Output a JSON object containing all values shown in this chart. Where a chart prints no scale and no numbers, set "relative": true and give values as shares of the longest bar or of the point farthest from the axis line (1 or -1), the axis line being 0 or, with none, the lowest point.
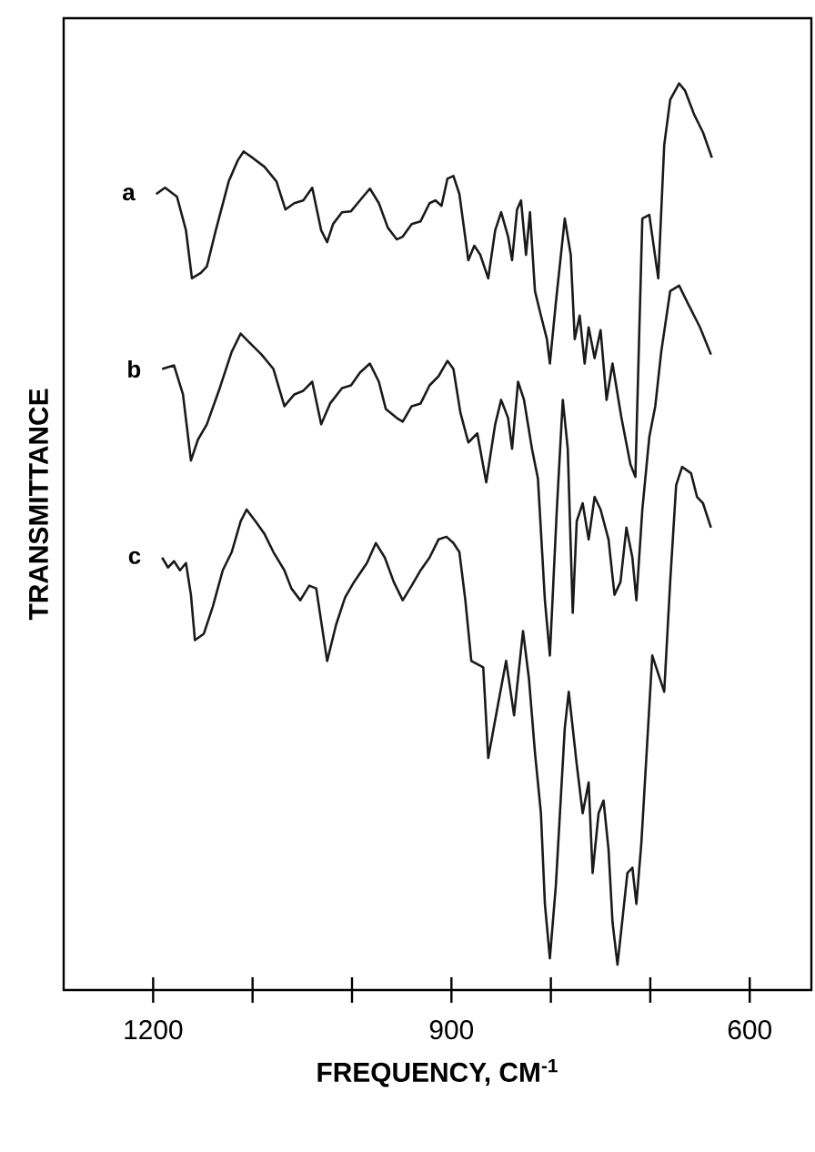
{
  "chart_data": {
    "type": "line",
    "relative": true,
    "xlabel": "FREQUENCY, CM$^{-1}$",
    "ylabel": "TRANSMITTANCE",
    "xlim": [
      1290,
      538
    ],
    "xticks": [
      1200,
      {
        "value": 1100,
        "label": null
      },
      {
        "value": 1000,
        "label": null
      },
      900,
      {
        "value": 800,
        "label": null
      },
      {
        "value": 700,
        "label": null
      },
      600
    ],
    "tick_labels": "x",
    "grid": false,
    "legend": false,
    "marker": "none",
    "line_style": "solid",
    "series": [
      {
        "name": "a",
        "color": "#1a1a1a",
        "x": [
          1197,
          1188,
          1176,
          1167,
          1161,
          1152,
          1146,
          1137,
          1124,
          1115,
          1109,
          1100,
          1088,
          1076,
          1067,
          1058,
          1049,
          1040,
          1031,
          1025,
          1019,
          1010,
          1001,
          992,
          982,
          973,
          964,
          955,
          949,
          940,
          931,
          922,
          916,
          910,
          904,
          898,
          892,
          883,
          877,
          871,
          863,
          856,
          850,
          843,
          839,
          834,
          830,
          825,
          821,
          816,
          810,
          804,
          801,
          795,
          786,
          780,
          776,
          771,
          766,
          762,
          756,
          750,
          744,
          738,
          729,
          720,
          715,
          708,
          701,
          692,
          686,
          680,
          671,
          665,
          656,
          647,
          638
        ],
        "values": [
          0.878,
          0.885,
          0.875,
          0.838,
          0.785,
          0.791,
          0.798,
          0.838,
          0.892,
          0.915,
          0.925,
          0.918,
          0.908,
          0.892,
          0.861,
          0.868,
          0.871,
          0.885,
          0.838,
          0.825,
          0.845,
          0.858,
          0.859,
          0.871,
          0.884,
          0.868,
          0.841,
          0.828,
          0.831,
          0.845,
          0.848,
          0.868,
          0.871,
          0.865,
          0.895,
          0.898,
          0.878,
          0.805,
          0.821,
          0.811,
          0.785,
          0.838,
          0.858,
          0.831,
          0.805,
          0.861,
          0.871,
          0.811,
          0.858,
          0.771,
          0.744,
          0.718,
          0.691,
          0.758,
          0.851,
          0.811,
          0.718,
          0.744,
          0.691,
          0.731,
          0.697,
          0.728,
          0.651,
          0.691,
          0.631,
          0.58,
          0.566,
          0.851,
          0.855,
          0.785,
          0.932,
          0.982,
          1.0,
          0.992,
          0.966,
          0.946,
          0.918
        ]
      },
      {
        "name": "b",
        "color": "#1a1a1a",
        "x": [
          1191,
          1179,
          1170,
          1162,
          1155,
          1146,
          1133,
          1121,
          1112,
          1103,
          1091,
          1079,
          1068,
          1058,
          1049,
          1040,
          1031,
          1022,
          1010,
          1001,
          992,
          982,
          973,
          966,
          955,
          949,
          940,
          931,
          922,
          913,
          904,
          898,
          891,
          883,
          874,
          865,
          856,
          850,
          843,
          839,
          833,
          827,
          819,
          813,
          806,
          801,
          794,
          788,
          783,
          778,
          774,
          768,
          762,
          756,
          750,
          742,
          736,
          730,
          724,
          718,
          714,
          708,
          701,
          695,
          689,
          680,
          671,
          662,
          650,
          639
        ],
        "values": [
          0.685,
          0.689,
          0.657,
          0.584,
          0.607,
          0.624,
          0.664,
          0.704,
          0.724,
          0.714,
          0.701,
          0.685,
          0.644,
          0.657,
          0.661,
          0.671,
          0.624,
          0.647,
          0.664,
          0.667,
          0.681,
          0.691,
          0.671,
          0.641,
          0.631,
          0.627,
          0.644,
          0.647,
          0.667,
          0.677,
          0.694,
          0.685,
          0.637,
          0.604,
          0.614,
          0.56,
          0.624,
          0.651,
          0.631,
          0.597,
          0.671,
          0.651,
          0.597,
          0.564,
          0.43,
          0.369,
          0.53,
          0.651,
          0.597,
          0.416,
          0.517,
          0.537,
          0.497,
          0.544,
          0.53,
          0.497,
          0.436,
          0.45,
          0.51,
          0.477,
          0.43,
          0.53,
          0.61,
          0.644,
          0.704,
          0.771,
          0.777,
          0.757,
          0.731,
          0.701
        ]
      },
      {
        "name": "c",
        "color": "#1a1a1a",
        "x": [
          1191,
          1185,
          1179,
          1173,
          1167,
          1162,
          1158,
          1149,
          1140,
          1130,
          1121,
          1112,
          1106,
          1097,
          1088,
          1079,
          1068,
          1061,
          1052,
          1043,
          1036,
          1025,
          1016,
          1007,
          998,
          985,
          976,
          967,
          958,
          949,
          940,
          931,
          922,
          913,
          905,
          898,
          892,
          886,
          880,
          868,
          863,
          853,
          845,
          837,
          828,
          822,
          816,
          810,
          806,
          801,
          795,
          786,
          782,
          774,
          768,
          762,
          758,
          752,
          747,
          742,
          738,
          733,
          729,
          723,
          718,
          714,
          709,
          704,
          698,
          692,
          686,
          680,
          674,
          668,
          659,
          653,
          647,
          639
        ],
        "values": [
          0.477,
          0.466,
          0.473,
          0.463,
          0.471,
          0.436,
          0.386,
          0.393,
          0.423,
          0.463,
          0.483,
          0.517,
          0.53,
          0.517,
          0.503,
          0.483,
          0.463,
          0.443,
          0.43,
          0.446,
          0.443,
          0.363,
          0.403,
          0.433,
          0.45,
          0.471,
          0.493,
          0.477,
          0.45,
          0.43,
          0.446,
          0.463,
          0.477,
          0.497,
          0.5,
          0.493,
          0.483,
          0.43,
          0.363,
          0.356,
          0.256,
          0.316,
          0.363,
          0.303,
          0.396,
          0.343,
          0.262,
          0.195,
          0.095,
          0.035,
          0.115,
          0.289,
          0.329,
          0.249,
          0.195,
          0.229,
          0.129,
          0.195,
          0.209,
          0.155,
          0.075,
          0.028,
          0.068,
          0.129,
          0.135,
          0.095,
          0.162,
          0.256,
          0.369,
          0.349,
          0.329,
          0.45,
          0.557,
          0.577,
          0.57,
          0.544,
          0.537,
          0.51
        ]
      }
    ]
  }
}
